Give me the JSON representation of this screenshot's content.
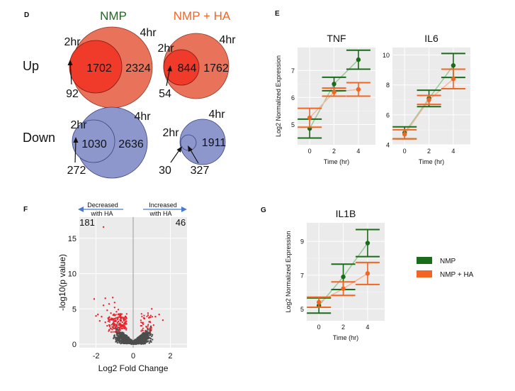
{
  "panels": {
    "D": {
      "letter": "D",
      "title_nmp": "NMP",
      "title_nmp_ha": "NMP + HA",
      "row_up": "Up",
      "row_down": "Down",
      "up_nmp": {
        "small_label": "2hr",
        "big_label": "4hr",
        "inner": "1702",
        "outer": "2324",
        "only_small": "92"
      },
      "up_ha": {
        "small_label": "2hr",
        "big_label": "4hr",
        "inner": "844",
        "outer": "1762",
        "only_small": "54"
      },
      "down_nmp": {
        "small_label": "2hr",
        "big_label": "4hr",
        "inner": "1030",
        "outer": "2636",
        "only_small": "272"
      },
      "down_ha": {
        "small_label": "2hr",
        "big_label": "4hr",
        "outer": "1911",
        "only_small": "30",
        "inner": "327"
      }
    },
    "E": {
      "letter": "E"
    },
    "F": {
      "letter": "F"
    },
    "G": {
      "letter": "G"
    }
  },
  "colors": {
    "nmp": "#1a6b1a",
    "nmp_ha": "#f26522",
    "up_big": "#e8735a",
    "up_small": "#f03a2a",
    "down_fill": "#8d97cc",
    "panel_bg": "#ebebeb",
    "volcano_sig": "#e8222a",
    "volcano_ns": "#4d4d4d",
    "arrow_blue": "#4a7bd0"
  },
  "legend": {
    "nmp": "NMP",
    "nmp_ha": "NMP + HA"
  },
  "chart_data": [
    {
      "id": "tnf",
      "type": "line",
      "title": "TNF",
      "xlabel": "Time (hr)",
      "ylabel": "Log2 Normalized Expression",
      "x": [
        0,
        2,
        4
      ],
      "xlim": [
        -1,
        5.4
      ],
      "ylim": [
        4.25,
        7.85
      ],
      "yticks": [
        5,
        6,
        7
      ],
      "xticks": [
        0,
        2,
        4
      ],
      "series": [
        {
          "name": "NMP",
          "values": [
            4.85,
            6.5,
            7.4
          ],
          "err": [
            0.35,
            0.25,
            0.35
          ]
        },
        {
          "name": "NMP + HA",
          "values": [
            5.25,
            6.2,
            6.3
          ],
          "err": [
            0.35,
            0.15,
            0.25
          ]
        }
      ]
    },
    {
      "id": "il6",
      "type": "line",
      "title": "IL6",
      "xlabel": "Time (hr)",
      "ylabel": "",
      "x": [
        0,
        2,
        4
      ],
      "xlim": [
        -1,
        5.4
      ],
      "ylim": [
        4,
        10.5
      ],
      "yticks": [
        4,
        6,
        8,
        10
      ],
      "xticks": [
        0,
        2,
        4
      ],
      "series": [
        {
          "name": "NMP",
          "values": [
            4.8,
            7.1,
            9.3
          ],
          "err": [
            0.4,
            0.55,
            0.8
          ]
        },
        {
          "name": "NMP + HA",
          "values": [
            4.7,
            7.0,
            8.4
          ],
          "err": [
            0.3,
            0.3,
            0.65
          ]
        }
      ]
    },
    {
      "id": "volcano",
      "type": "scatter",
      "title": "",
      "xlabel": "Log2 Fold Change",
      "ylabel": "-log10(p value)",
      "xlim": [
        -2.9,
        2.9
      ],
      "ylim": [
        -0.5,
        18
      ],
      "xticks": [
        -2,
        0,
        2
      ],
      "yticks": [
        0,
        5,
        10,
        15
      ],
      "annotations": {
        "decreased": "Decreased\nwith HA",
        "increased": "Increased\nwith HA",
        "count_down": "181",
        "count_up": "46"
      },
      "points": [
        [
          -1.5,
          6.5
        ],
        [
          -1.1,
          6.6
        ],
        [
          -2.1,
          6.4
        ],
        [
          -1.3,
          5.7
        ],
        [
          -1.6,
          5.5
        ],
        [
          -1.0,
          5.2
        ],
        [
          -1.4,
          4.8
        ],
        [
          -0.9,
          4.6
        ],
        [
          -1.9,
          4.2
        ],
        [
          -1.2,
          4.4
        ],
        [
          -0.8,
          4.9
        ],
        [
          -1.7,
          3.9
        ],
        [
          -0.7,
          4.3
        ],
        [
          -1.0,
          3.6
        ],
        [
          -1.3,
          3.4
        ],
        [
          -0.6,
          3.8
        ],
        [
          -1.5,
          3.1
        ],
        [
          -0.8,
          3.2
        ],
        [
          -1.1,
          2.9
        ],
        [
          -0.5,
          3.5
        ],
        [
          -1.4,
          2.6
        ],
        [
          -0.9,
          2.5
        ],
        [
          -0.6,
          2.7
        ],
        [
          -1.2,
          2.2
        ],
        [
          -0.7,
          2.0
        ],
        [
          -1.6,
          16.6
        ],
        [
          -1.0,
          5.9
        ],
        [
          -0.4,
          3.0
        ],
        [
          -1.8,
          3.3
        ],
        [
          -2.0,
          4.0
        ],
        [
          1.0,
          5.0
        ],
        [
          0.8,
          4.4
        ],
        [
          1.2,
          3.9
        ],
        [
          0.6,
          3.6
        ],
        [
          1.4,
          4.2
        ],
        [
          0.9,
          3.2
        ],
        [
          0.5,
          3.0
        ],
        [
          1.1,
          2.7
        ],
        [
          0.7,
          2.5
        ],
        [
          1.6,
          3.4
        ]
      ],
      "significant_count_down": 181,
      "significant_count_up": 46
    },
    {
      "id": "il1b",
      "type": "line",
      "title": "IL1B",
      "xlabel": "Time (hr)",
      "ylabel": "Log2 Normalized Expression",
      "x": [
        0,
        2,
        4
      ],
      "xlim": [
        -1,
        5.4
      ],
      "ylim": [
        4.3,
        10.1
      ],
      "yticks": [
        5,
        7,
        9
      ],
      "xticks": [
        0,
        2,
        4
      ],
      "series": [
        {
          "name": "NMP",
          "values": [
            5.2,
            6.9,
            8.9
          ],
          "err": [
            0.45,
            0.75,
            0.8
          ]
        },
        {
          "name": "NMP + HA",
          "values": [
            5.4,
            6.2,
            7.1
          ],
          "err": [
            0.3,
            0.4,
            0.65
          ]
        }
      ]
    }
  ]
}
